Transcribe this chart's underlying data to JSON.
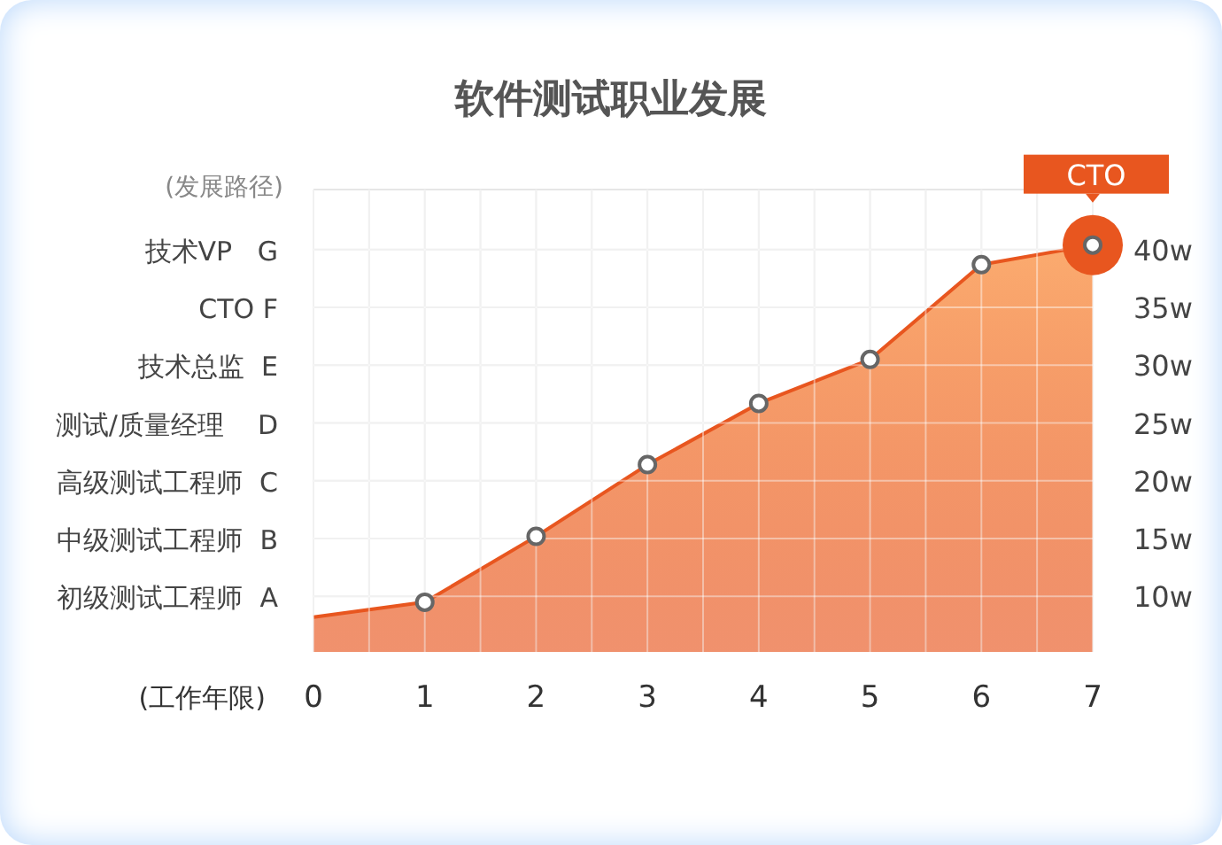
{
  "chart_data": {
    "type": "area",
    "title": "软件测试职业发展",
    "xlabel": "(工作年限)",
    "ylabel": "(发展路径)",
    "x": [
      0,
      1,
      2,
      3,
      4,
      5,
      6,
      7
    ],
    "series": [
      {
        "color": "#e8561f",
        "values": [
          8.2,
          9.5,
          15.2,
          21.4,
          26.7,
          30.5,
          38.7,
          40.4
        ]
      }
    ],
    "xlim": [
      0,
      7
    ],
    "xticks": [
      0,
      {
        "value": 0.5,
        "label": null
      },
      1,
      {
        "value": 1.5,
        "label": null
      },
      2,
      {
        "value": 2.5,
        "label": null
      },
      3,
      {
        "value": 3.5,
        "label": null
      },
      4,
      {
        "value": 4.5,
        "label": null
      },
      5,
      {
        "value": 5.5,
        "label": null
      },
      6,
      {
        "value": 6.5,
        "label": null
      },
      7
    ],
    "ylim": [
      5.2,
      45.2
    ],
    "yticks": [
      {
        "value": 10,
        "label": "10w"
      },
      {
        "value": 15,
        "label": "15w"
      },
      {
        "value": 20,
        "label": "20w"
      },
      {
        "value": 25,
        "label": "25w"
      },
      {
        "value": 30,
        "label": "30w"
      },
      {
        "value": 35,
        "label": "35w"
      },
      {
        "value": 40,
        "label": "40w"
      }
    ],
    "annotations": [
      {
        "text": "CTO",
        "x": 7,
        "y": 40.4
      },
      "初级测试工程师  A",
      "中级测试工程师  B",
      "高级测试工程师  C",
      "测试/质量经理    D",
      "技术总监  E",
      "CTO F",
      "技术VP   G"
    ],
    "grid": true,
    "marker": "circle",
    "line_style": "solid"
  }
}
